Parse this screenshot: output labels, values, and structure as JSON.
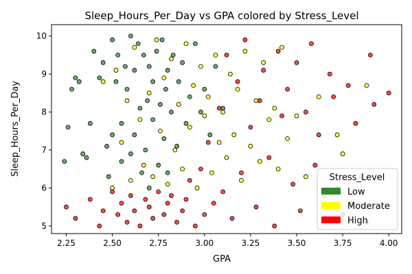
{
  "chart_data": {
    "type": "scatter",
    "title": "Sleep_Hours_Per_Day vs GPA colored by Stress_Level",
    "xlabel": "GPA",
    "ylabel": "Sleep_Hours_Per_Day",
    "xlim": [
      2.17,
      4.07
    ],
    "ylim": [
      4.8,
      10.3
    ],
    "x_ticks": [
      "2.25",
      "2.50",
      "2.75",
      "3.00",
      "3.25",
      "3.50",
      "3.75",
      "4.00"
    ],
    "y_ticks": [
      "5",
      "6",
      "7",
      "8",
      "9",
      "10"
    ],
    "grid": false,
    "legend": {
      "title": "Stress_Level",
      "placement": "lower-right",
      "entries": [
        "Low",
        "Moderate",
        "High"
      ]
    },
    "colors": {
      "Low": "#2e8b2e",
      "Moderate": "#ffff00",
      "High": "#ff0000"
    },
    "series": [
      {
        "name": "Low",
        "color": "#2e8b2e",
        "x": [
          2.24,
          2.26,
          2.28,
          2.3,
          2.32,
          2.34,
          2.36,
          2.38,
          2.4,
          2.43,
          2.45,
          2.47,
          2.48,
          2.5,
          2.5,
          2.52,
          2.53,
          2.55,
          2.55,
          2.57,
          2.58,
          2.6,
          2.6,
          2.62,
          2.62,
          2.64,
          2.65,
          2.66,
          2.67,
          2.68,
          2.69,
          2.7,
          2.7,
          2.72,
          2.72,
          2.74,
          2.75,
          2.76,
          2.77,
          2.78,
          2.79,
          2.8,
          2.8,
          2.82,
          2.83,
          2.85,
          2.86,
          2.88,
          2.9,
          2.92,
          2.95,
          2.98,
          3.0,
          3.03,
          3.06,
          3.1
        ],
        "y": [
          6.7,
          7.6,
          8.6,
          8.9,
          8.8,
          6.9,
          6.8,
          7.7,
          9.6,
          8.9,
          9.3,
          7.1,
          6.3,
          9.9,
          7.4,
          8.8,
          9.5,
          7.7,
          6.7,
          9.2,
          8.6,
          10.0,
          6.9,
          9.1,
          7.4,
          9.8,
          8.1,
          6.4,
          9.5,
          7.0,
          8.3,
          9.2,
          6.0,
          8.8,
          7.8,
          9.6,
          6.6,
          8.2,
          9.9,
          7.3,
          8.6,
          9.1,
          6.4,
          8.0,
          9.5,
          7.1,
          8.8,
          9.3,
          7.7,
          8.4,
          9.8,
          8.0,
          8.6,
          7.4,
          9.2,
          8.1
        ]
      },
      {
        "name": "Moderate",
        "color": "#ffff00",
        "x": [
          2.45,
          2.5,
          2.52,
          2.55,
          2.58,
          2.6,
          2.62,
          2.65,
          2.67,
          2.7,
          2.72,
          2.74,
          2.76,
          2.78,
          2.8,
          2.82,
          2.84,
          2.86,
          2.88,
          2.9,
          2.92,
          2.94,
          2.96,
          2.98,
          3.0,
          3.02,
          3.04,
          3.06,
          3.08,
          3.1,
          3.12,
          3.14,
          3.16,
          3.18,
          3.2,
          3.22,
          3.25,
          3.28,
          3.3,
          3.32,
          3.35,
          3.38,
          3.4,
          3.42,
          3.45,
          3.5,
          3.55,
          3.62,
          3.72,
          3.75,
          3.88
        ],
        "y": [
          8.8,
          6.0,
          9.1,
          7.2,
          8.3,
          6.2,
          9.7,
          7.8,
          6.6,
          8.5,
          6.3,
          9.9,
          7.5,
          8.9,
          6.1,
          9.4,
          7.0,
          8.2,
          6.5,
          9.8,
          7.6,
          8.7,
          6.0,
          9.2,
          7.9,
          8.4,
          6.4,
          9.5,
          7.2,
          8.0,
          6.8,
          9.0,
          7.4,
          8.6,
          6.2,
          9.6,
          7.1,
          8.3,
          6.7,
          9.3,
          7.8,
          8.1,
          6.5,
          9.7,
          7.3,
          7.9,
          6.3,
          8.4,
          7.4,
          6.9,
          8.7
        ]
      },
      {
        "name": "High",
        "color": "#ff0000",
        "x": [
          2.25,
          2.3,
          2.38,
          2.43,
          2.45,
          2.5,
          2.53,
          2.55,
          2.58,
          2.6,
          2.62,
          2.65,
          2.68,
          2.7,
          2.72,
          2.75,
          2.78,
          2.8,
          2.82,
          2.85,
          2.88,
          2.9,
          2.92,
          2.95,
          2.98,
          3.0,
          3.02,
          3.05,
          3.08,
          3.1,
          3.12,
          3.15,
          3.18,
          3.2,
          3.22,
          3.25,
          3.28,
          3.3,
          3.32,
          3.35,
          3.38,
          3.4,
          3.42,
          3.45,
          3.48,
          3.5,
          3.52,
          3.55,
          3.58,
          3.6,
          3.62,
          3.65,
          3.68,
          3.7,
          3.72,
          3.75,
          3.78,
          3.8,
          3.82,
          3.85,
          3.88,
          3.9,
          3.92,
          4.0
        ],
        "y": [
          5.5,
          5.2,
          5.7,
          5.0,
          5.4,
          5.9,
          5.3,
          5.6,
          5.1,
          5.8,
          5.4,
          5.0,
          5.7,
          5.5,
          5.2,
          5.9,
          5.3,
          5.6,
          5.8,
          5.1,
          5.4,
          5.7,
          6.2,
          5.0,
          6.5,
          5.3,
          7.2,
          5.6,
          8.1,
          5.9,
          9.5,
          5.2,
          8.8,
          6.4,
          9.9,
          7.6,
          5.5,
          8.3,
          9.1,
          6.8,
          5.0,
          9.6,
          7.9,
          8.6,
          6.1,
          9.3,
          5.4,
          8.0,
          9.8,
          6.6,
          7.4,
          5.8,
          9.0,
          8.4,
          6.0,
          5.3,
          8.7,
          5.6,
          7.7,
          6.3,
          5.1,
          9.5,
          8.2,
          8.5
        ]
      }
    ]
  }
}
